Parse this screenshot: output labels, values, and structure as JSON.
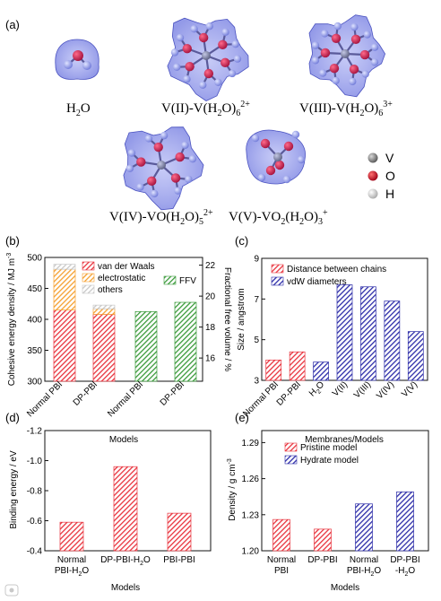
{
  "panel_a": {
    "label": "(a)",
    "structures": [
      {
        "name": "H2O",
        "label_main": "H",
        "label_sub1": "2",
        "label_tail": "O",
        "label_sup": ""
      },
      {
        "name": "V(II)",
        "label_main": "V(II)-V(H",
        "label_sub1": "2",
        "label_tail": "O)",
        "label_sub2": "6",
        "label_sup": "2+"
      },
      {
        "name": "V(III)",
        "label_main": "V(III)-V(H",
        "label_sub1": "2",
        "label_tail": "O)",
        "label_sub2": "6",
        "label_sup": "3+"
      },
      {
        "name": "V(IV)",
        "label_main": "V(IV)-VO(H",
        "label_sub1": "2",
        "label_tail": "O)",
        "label_sub2": "5",
        "label_sup": "2+"
      },
      {
        "name": "V(V)",
        "label_main": "V(V)-VO",
        "label_sub1": "2",
        "label_tail": "(H",
        "label_sub2": "2",
        "label_tail2": "O)",
        "label_sub3": "3",
        "label_sup": "+"
      }
    ],
    "atom_legend": [
      {
        "symbol": "V",
        "color": "#7f7f7f"
      },
      {
        "symbol": "O",
        "color": "#c0102a"
      },
      {
        "symbol": "H",
        "color": "#e8e8e8"
      }
    ],
    "colors": {
      "shell": "#7d86e6",
      "H": "#8c95f2",
      "O": "#c41e5a",
      "V": "#7a7fa0",
      "bond": "#4a4a8a"
    }
  },
  "chart_data": [
    {
      "panel": "(b)",
      "type": "bar",
      "categories": [
        "Normal PBI",
        "DP-PBI",
        "Normal PBI",
        "DP-PBI"
      ],
      "xlabel": "Models",
      "ylabel": "Cohesive energy density / MJ m",
      "ylabel_sup": "-3",
      "ylim": [
        300,
        500
      ],
      "yticks": [
        300,
        350,
        400,
        450,
        500
      ],
      "y2label": "Fractional free volume / %",
      "y2lim": [
        14.5,
        22.5
      ],
      "y2ticks": [
        16,
        18,
        20,
        22
      ],
      "stacked_series": [
        {
          "name": "van der Waals",
          "color": "#e8323c",
          "values": [
            415,
            408
          ]
        },
        {
          "name": "electrostatic",
          "color": "#f5a030",
          "values": [
            66,
            9
          ]
        },
        {
          "name": "others",
          "color": "#c8c8c8",
          "values": [
            8,
            6
          ]
        }
      ],
      "ffv_series": {
        "name": "FFV",
        "color": "#3a9a3a",
        "values": [
          19.0,
          19.6
        ]
      }
    },
    {
      "panel": "(c)",
      "type": "bar",
      "categories": [
        "Normal PBI",
        "DP-PBI",
        "H2O",
        "V(II)",
        "V(III)",
        "V(IV)",
        "V(V)"
      ],
      "xlabel": "Membranes/Models",
      "ylabel": "Size / angstrom",
      "ylim": [
        3,
        9
      ],
      "yticks": [
        3,
        5,
        7,
        9
      ],
      "series": [
        {
          "name": "Distance between chains",
          "color": "#e8323c",
          "values": [
            4.0,
            4.4,
            null,
            null,
            null,
            null,
            null
          ]
        },
        {
          "name": "vdW diameters",
          "color": "#2c2ca8",
          "values": [
            null,
            null,
            3.9,
            7.7,
            7.6,
            6.9,
            5.4
          ]
        }
      ]
    },
    {
      "panel": "(d)",
      "type": "bar",
      "categories": [
        "Normal PBI-H2O",
        "DP-PBI-H2O",
        "PBI-PBI"
      ],
      "xlabel": "Models",
      "ylabel": "Binding energy / eV",
      "ylim": [
        -0.4,
        -1.2
      ],
      "yticks": [
        -1.2,
        -1.0,
        -0.8,
        -0.6,
        -0.4
      ],
      "series": [
        {
          "name": "",
          "color": "#e8323c",
          "values": [
            -0.59,
            -0.96,
            -0.65
          ]
        }
      ]
    },
    {
      "panel": "(e)",
      "type": "bar",
      "categories": [
        "Normal PBI",
        "DP-PBI",
        "Normal PBI-H2O",
        "DP-PBI -H2O"
      ],
      "xlabel": "Models",
      "ylabel": "Density / g cm",
      "ylabel_sup": "-3",
      "ylim": [
        1.2,
        1.3
      ],
      "yticks": [
        1.2,
        1.23,
        1.26,
        1.29
      ],
      "series": [
        {
          "name": "Pristine  model",
          "color": "#e8323c",
          "values": [
            1.226,
            1.218,
            null,
            null
          ]
        },
        {
          "name": "Hydrate model",
          "color": "#2c2ca8",
          "values": [
            null,
            null,
            1.239,
            1.249
          ]
        }
      ]
    }
  ],
  "labels": {
    "b": "(b)",
    "c": "(c)",
    "d": "(d)",
    "e": "(e)",
    "b_cat": [
      "Normal PBI",
      "DP-PBI",
      "Normal PBI",
      "DP-PBI"
    ],
    "c_cat": [
      {
        "main": "Normal PBI"
      },
      {
        "main": "DP-PBI"
      },
      {
        "main": "H",
        "sub": "2",
        "tail": "O"
      },
      {
        "main": "V(II)"
      },
      {
        "main": "V(III)"
      },
      {
        "main": "V(IV)"
      },
      {
        "main": "V(V)"
      }
    ],
    "d_cat": [
      [
        "Normal",
        "PBI-H",
        "2",
        "O"
      ],
      [
        "DP-PBI-H",
        "2",
        "O"
      ],
      [
        "PBI-PBI"
      ]
    ],
    "e_cat": [
      [
        "Normal",
        "PBI"
      ],
      [
        "DP-PBI"
      ],
      [
        "Normal",
        "PBI-H",
        "2",
        "O"
      ],
      [
        "DP-PBI",
        "-H",
        "2",
        "O"
      ]
    ]
  }
}
